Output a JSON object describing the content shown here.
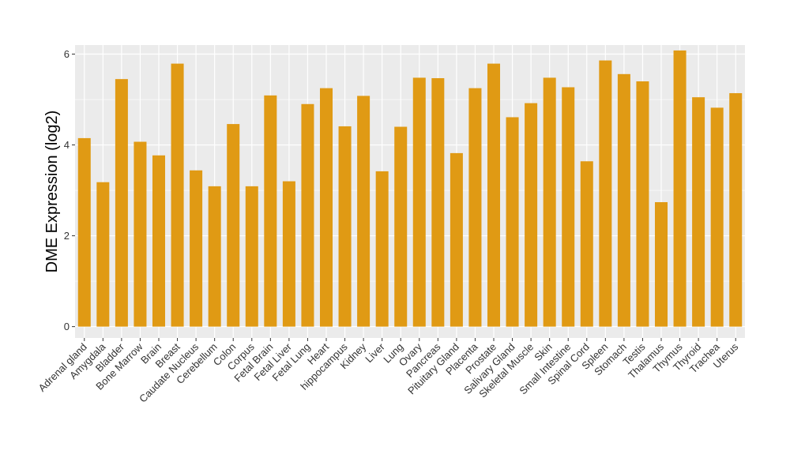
{
  "chart_data": {
    "type": "bar",
    "ylabel": "DME Expression (log2)",
    "xlabel": "",
    "ylim": [
      -0.25,
      6.2
    ],
    "yticks": [
      0,
      2,
      4,
      6
    ],
    "bar_color": "#E09A14",
    "panel_color": "#EBEBEB",
    "grid_color": "#FFFFFF",
    "grid": true,
    "categories": [
      "Adrenal gland",
      "Amygdala",
      "Bladder",
      "Bone Marrow",
      "Brain",
      "Breast",
      "Caudate Nucleus",
      "Cerebellum",
      "Colon",
      "Corpus",
      "Fetal Brain",
      "Fetal Liver",
      "Fetal Lung",
      "Heart",
      "hippocampus",
      "Kidney",
      "Liver",
      "Lung",
      "Ovary",
      "Pancreas",
      "Pituitary Gland",
      "Placenta",
      "Prostate",
      "Salivary Gland",
      "Skeletal Muscle",
      "Skin",
      "Small Intestine",
      "Spinal Cord",
      "Spleen",
      "Stomach",
      "Testis",
      "Thalamus",
      "Thymus",
      "Thyroid",
      "Trachea",
      "Uterus"
    ],
    "values": [
      4.15,
      3.18,
      5.45,
      4.07,
      3.77,
      5.79,
      3.44,
      3.09,
      4.46,
      3.09,
      5.09,
      3.2,
      4.9,
      5.25,
      4.41,
      5.08,
      3.42,
      4.4,
      5.48,
      5.47,
      3.82,
      5.25,
      5.79,
      4.61,
      4.92,
      5.48,
      5.27,
      3.64,
      5.86,
      5.56,
      5.4,
      2.74,
      6.08,
      5.05,
      4.82,
      5.14
    ]
  }
}
